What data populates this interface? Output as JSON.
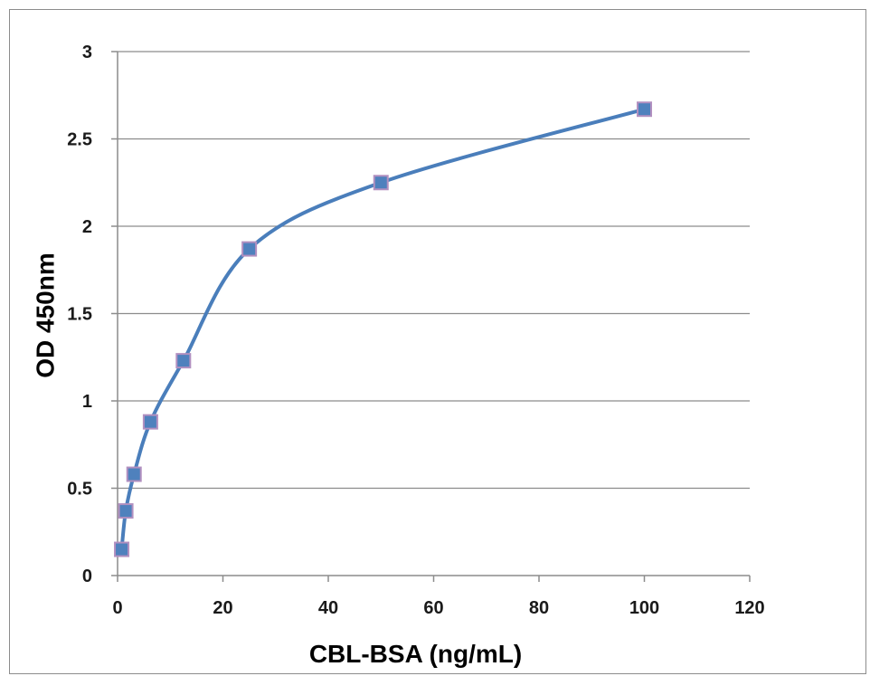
{
  "chart_data": {
    "type": "scatter",
    "title": "",
    "xlabel": "CBL-BSA (ng/mL)",
    "ylabel": "OD 450nm",
    "xlim": [
      0,
      120
    ],
    "ylim": [
      0,
      3
    ],
    "x_ticks": [
      "0",
      "20",
      "40",
      "60",
      "80",
      "100",
      "120"
    ],
    "y_ticks": [
      "0",
      "0.5",
      "1",
      "1.5",
      "2",
      "2.5",
      "3"
    ],
    "grid": "horizontal",
    "legend": "none",
    "smoothed_line": true,
    "series": [
      {
        "x": [
          0.78,
          1.56,
          3.13,
          6.25,
          12.5,
          25,
          50,
          100
        ],
        "y": [
          0.15,
          0.37,
          0.58,
          0.88,
          1.23,
          1.87,
          2.25,
          2.67
        ],
        "line_color": "#4a7ebb",
        "marker_color": "#4f81bd",
        "marker_edge_color": "#b290c0",
        "marker": "square"
      }
    ]
  }
}
